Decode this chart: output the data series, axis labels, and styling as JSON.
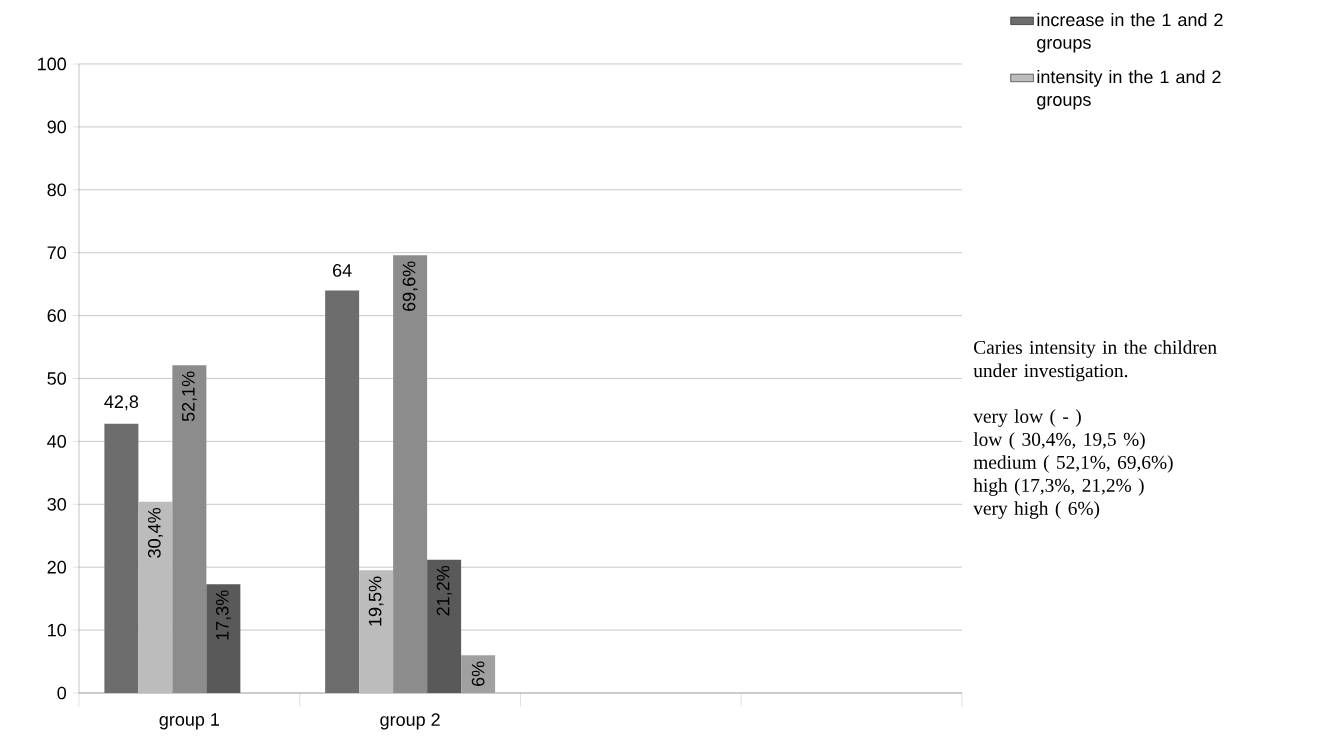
{
  "chart_data": {
    "type": "bar",
    "categories": [
      "group 1",
      "group 2",
      null,
      null
    ],
    "series": [
      {
        "name": "increase in the 1 and 2 groups",
        "color": "#6d6d6d",
        "values": [
          42.8,
          64,
          null,
          null
        ],
        "value_labels": [
          "42,8",
          "64",
          null,
          null
        ]
      },
      {
        "name": "intensity in the 1 and 2 groups",
        "color": "#bcbcbc",
        "values": [
          30.4,
          19.5,
          null,
          null
        ],
        "value_labels": [
          "30,4%",
          "19,5%",
          null,
          null
        ]
      },
      {
        "color": "#8c8c8c",
        "values": [
          52.1,
          69.6,
          null,
          null
        ],
        "value_labels": [
          "52,1%",
          "69,6%",
          null,
          null
        ]
      },
      {
        "color": "#595959",
        "values": [
          17.3,
          21.2,
          null,
          null
        ],
        "value_labels": [
          "17,3%",
          "21,2%",
          null,
          null
        ]
      },
      {
        "color": "#a0a0a0",
        "values": [
          null,
          6,
          null,
          null
        ],
        "value_labels": [
          null,
          "6%",
          null,
          null
        ]
      }
    ],
    "ylim": [
      0,
      100
    ],
    "yticks": [
      0,
      10,
      20,
      30,
      40,
      50,
      60,
      70,
      80,
      90,
      100
    ],
    "grid": "y",
    "legend": "top right",
    "annotations": [
      "Caries intensity in the children under investigation.",
      "very low ( - )",
      "low ( 30,4%, 19,5 %)",
      "medium ( 52,1%, 69,6%)",
      "high (17,3%, 21,2% )",
      "very high ( 6%)"
    ]
  }
}
